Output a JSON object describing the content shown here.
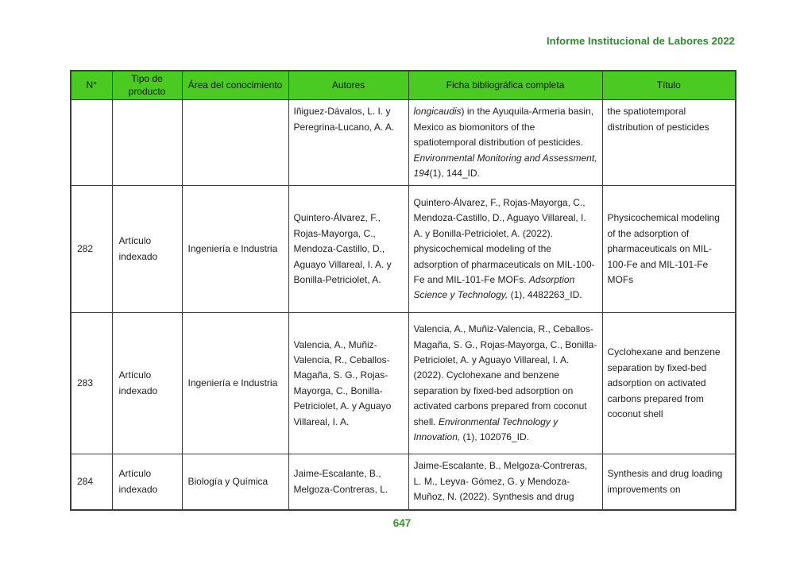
{
  "page": {
    "header_title": "Informe Institucional de Labores 2022",
    "page_number": "647"
  },
  "colors": {
    "table_header_bg": "#4bca22",
    "title_green": "#2e8b2e",
    "footer_green": "#3a9430",
    "border": "#3d3d3d",
    "text": "#1e1e1e"
  },
  "table": {
    "columns": [
      "N°",
      "Tipo de producto",
      "Área del conocimiento",
      "Autores",
      "Ficha bibliográfica completa",
      "Título"
    ],
    "rows": [
      {
        "num": "",
        "tipo": "",
        "area": "",
        "autores": "Iñiguez-Dávalos, L. I. y Peregrina-Lucano, A. A.",
        "ficha": [
          {
            "italic": true,
            "text": "longicaudis"
          },
          {
            "italic": false,
            "text": ") in the Ayuquila-Armeria basin, Mexico as biomonitors of the spatiotemporal distribution of pesticides. "
          },
          {
            "italic": true,
            "text": "Environmental Monitoring and Assessment, 194"
          },
          {
            "italic": false,
            "text": "(1), 144_ID."
          }
        ],
        "titulo": "the spatiotemporal distribution of pesticides"
      },
      {
        "num": "282",
        "tipo": "Artículo indexado",
        "area": "Ingeniería e Industria",
        "autores": "Quintero-Álvarez, F., Rojas-Mayorga, C., Mendoza-Castillo, D., Aguayo Villareal, I. A. y Bonilla-Petriciolet, A.",
        "ficha": [
          {
            "italic": false,
            "text": "Quintero-Álvarez, F., Rojas-Mayorga, C., Mendoza-Castillo, D., Aguayo Villareal, I. A. y Bonilla-Petriciolet, A. (2022). physicochemical modeling of the adsorption of pharmaceuticals on MIL-100-Fe and MIL-101-Fe MOFs. "
          },
          {
            "italic": true,
            "text": "Adsorption Science y Technology,"
          },
          {
            "italic": false,
            "text": " (1), 4482263_ID."
          }
        ],
        "titulo": "Physicochemical modeling of the adsorption of pharmaceuticals on MIL-100-Fe and MIL-101-Fe MOFs"
      },
      {
        "num": "283",
        "tipo": "Artículo indexado",
        "area": "Ingeniería e Industria",
        "autores": "Valencia, A., Muñiz-Valencia, R., Ceballos-Magaña, S. G., Rojas-Mayorga, C., Bonilla-Petriciolet, A. y Aguayo Villareal, I. A.",
        "ficha": [
          {
            "italic": false,
            "text": "Valencia, A., Muñiz-Valencia, R., Ceballos-Magaña, S. G., Rojas-Mayorga, C., Bonilla-Petriciolet, A. y Aguayo Villareal, I. A. (2022). Cyclohexane and benzene separation by fixed-bed adsorption on activated carbons prepared from coconut shell. "
          },
          {
            "italic": true,
            "text": "Environmental Technology y Innovation,"
          },
          {
            "italic": false,
            "text": " (1), 102076_ID."
          }
        ],
        "titulo": "Cyclohexane and benzene separation by fixed-bed adsorption on activated carbons prepared from coconut shell"
      },
      {
        "num": "284",
        "tipo": "Artículo indexado",
        "area": "Biología y Química",
        "autores": "Jaime-Escalante, B., Melgoza-Contreras, L.",
        "ficha": [
          {
            "italic": false,
            "text": "Jaime-Escalante, B., Melgoza-Contreras, L. M., Leyva- Gómez, G. y Mendoza-Muñoz, N. (2022). Synthesis and drug"
          }
        ],
        "titulo": "Synthesis and drug loading improvements on"
      }
    ]
  }
}
